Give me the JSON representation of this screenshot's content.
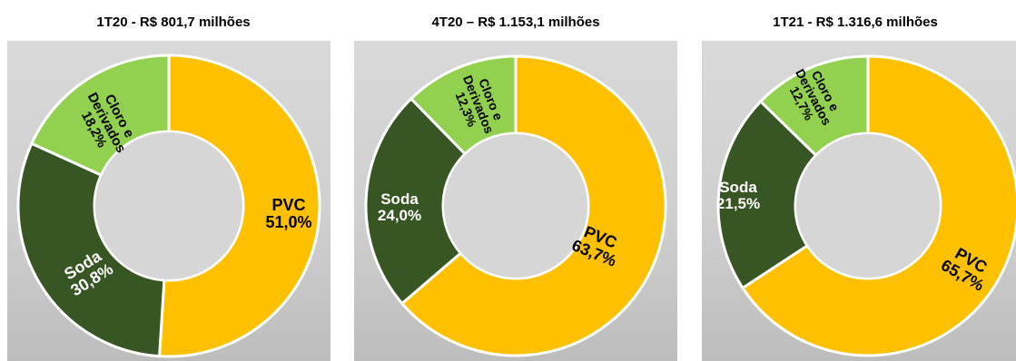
{
  "chart_data": [
    {
      "type": "pie",
      "title": "1T20 - R$ 801,7 milhões",
      "slices": [
        {
          "name": "PVC",
          "pct_label": "51,0%",
          "value": 51.0,
          "color": "#FFC000"
        },
        {
          "name": "Soda",
          "pct_label": "30,8%",
          "value": 30.8,
          "color": "#375623"
        },
        {
          "name": "Cloro e Derivados",
          "pct_label": "18,2%",
          "value": 18.2,
          "color": "#92D050"
        }
      ]
    },
    {
      "type": "pie",
      "title": "4T20 – R$ 1.153,1 milhões",
      "slices": [
        {
          "name": "PVC",
          "pct_label": "63,7%",
          "value": 63.7,
          "color": "#FFC000"
        },
        {
          "name": "Soda",
          "pct_label": "24,0%",
          "value": 24.0,
          "color": "#375623"
        },
        {
          "name": "Cloro e Derivados",
          "pct_label": "12,3%",
          "value": 12.3,
          "color": "#92D050"
        }
      ]
    },
    {
      "type": "pie",
      "title": "1T21 - R$ 1.316,6 milhões",
      "slices": [
        {
          "name": "PVC",
          "pct_label": "65,7%",
          "value": 65.7,
          "color": "#FFC000"
        },
        {
          "name": "Soda",
          "pct_label": "21,5%",
          "value": 21.5,
          "color": "#375623"
        },
        {
          "name": "Cloro e Derivados",
          "pct_label": "12,7%",
          "value": 12.7,
          "color": "#92D050"
        }
      ]
    }
  ]
}
